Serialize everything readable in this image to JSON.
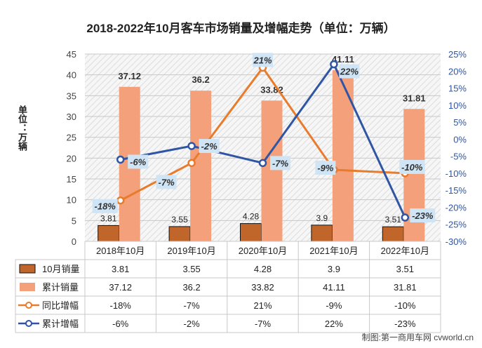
{
  "chart_data": {
    "type": "bar",
    "title": "2018-2022年10月客车市场销量及增幅走势（单位：万辆）",
    "ylabel": "单位：万辆",
    "categories": [
      "2018年10月",
      "2019年10月",
      "2020年10月",
      "2021年10月",
      "2022年10月"
    ],
    "ylim": [
      0,
      45
    ],
    "y_ticks": [
      0,
      5,
      10,
      15,
      20,
      25,
      30,
      35,
      40,
      45
    ],
    "y2lim": [
      -30,
      25
    ],
    "y2_ticks": [
      "25%",
      "20%",
      "15%",
      "10%",
      "5%",
      "0%",
      "-5%",
      "-10%",
      "-15%",
      "-20%",
      "-25%",
      "-30%"
    ],
    "series": [
      {
        "name": "10月销量",
        "type": "bar",
        "axis": "left",
        "color": "#c0662a",
        "values": [
          3.81,
          3.55,
          4.28,
          3.9,
          3.51
        ],
        "labels": [
          "3.81",
          "3.55",
          "4.28",
          "3.9",
          "3.51"
        ]
      },
      {
        "name": "累计销量",
        "type": "bar",
        "axis": "left",
        "color": "#f4a07a",
        "values": [
          37.12,
          36.2,
          33.82,
          41.11,
          31.81
        ],
        "labels": [
          "37.12",
          "36.2",
          "33.82",
          "41.11",
          "31.81"
        ]
      },
      {
        "name": "同比增幅",
        "type": "line",
        "axis": "right",
        "color": "#e87b2c",
        "values": [
          -18,
          -7,
          21,
          -9,
          -10
        ],
        "labels": [
          "-18%",
          "-7%",
          "21%",
          "-9%",
          "-10%"
        ]
      },
      {
        "name": "累计增幅",
        "type": "line",
        "axis": "right",
        "color": "#2f55a4",
        "values": [
          -6,
          -2,
          -7,
          22,
          -23
        ],
        "labels": [
          "-6%",
          "-2%",
          "-7%",
          "22%",
          "-23%"
        ]
      }
    ],
    "grid": true,
    "legend": "data-table-below"
  },
  "credit": "制图:第一商用车网 cvworld.cn"
}
